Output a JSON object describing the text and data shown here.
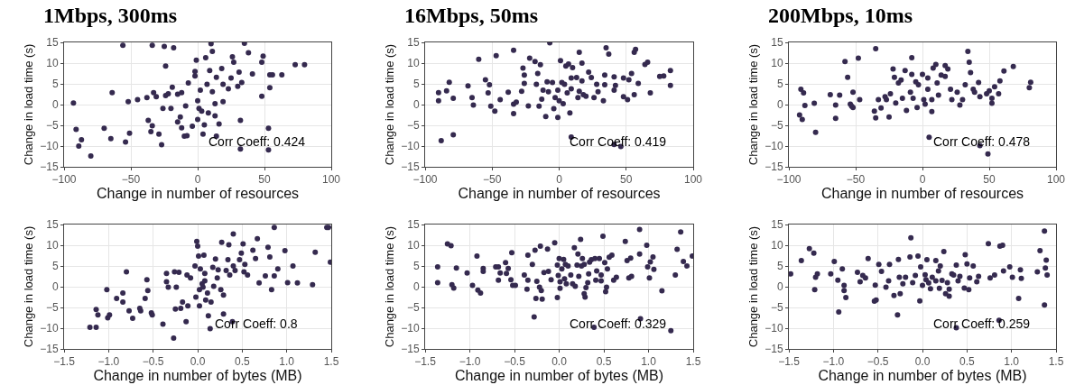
{
  "chart_data": [
    {
      "type": "scatter",
      "title": "1Mbps, 300ms",
      "xlabel": "Change in number of resources",
      "ylabel": "Change in load time (s)",
      "annotations": [
        "Corr Coeff: 0.424"
      ],
      "marker": "circle",
      "grid": true,
      "color": "#352a4f",
      "xlim": [
        -100,
        100
      ],
      "xticks": [
        {
          "value": -100,
          "label": "−100"
        },
        {
          "value": -50,
          "label": "−50"
        },
        0,
        50,
        100
      ],
      "ylim": [
        -15,
        15
      ],
      "yticks": [
        {
          "value": -15,
          "label": "−15"
        },
        {
          "value": -10,
          "label": "−10"
        },
        {
          "value": -5,
          "label": "−5"
        },
        0,
        5,
        10,
        15
      ],
      "x": [
        -93,
        -91,
        -89,
        -87,
        -80,
        -70,
        -65,
        -64,
        -56,
        -54,
        -52,
        -51,
        -45,
        -38,
        -37,
        -35,
        -34,
        -34,
        -33,
        -31,
        -29,
        -27,
        -26,
        -25,
        -24,
        -24,
        -22,
        -20,
        -18,
        -19,
        -15,
        -15,
        -13,
        -12,
        -12,
        -10,
        -8,
        -9,
        -7,
        -4,
        -2,
        -2,
        -1,
        0,
        0,
        1,
        2,
        3,
        4,
        5,
        6,
        7,
        8,
        9,
        10,
        11,
        11,
        13,
        13,
        14,
        14,
        16,
        18,
        19,
        19,
        23,
        25,
        26,
        27,
        30,
        31,
        32,
        32,
        33,
        35,
        38,
        41,
        48,
        48,
        49,
        53,
        53,
        54,
        54,
        56,
        63,
        73,
        80
      ],
      "values": [
        0.4,
        -6,
        -10,
        -8.5,
        -12.4,
        -5.7,
        -8.2,
        2.9,
        14.3,
        -9,
        0.7,
        -6.9,
        1.2,
        1.7,
        -3.8,
        -6.5,
        -5.1,
        14.3,
        2.9,
        1.9,
        -7.1,
        -9.7,
        -0.9,
        14,
        9.3,
        2.2,
        2.6,
        -0.9,
        13.7,
        4.2,
        -4.2,
        2.5,
        -3,
        2.9,
        -5.6,
        -7.6,
        -7.5,
        -0.3,
        5.2,
        -5.2,
        8,
        6.9,
        10.7,
        -3.6,
        0.9,
        -0.9,
        3.5,
        -1.6,
        -7.1,
        -4.9,
        11.3,
        4.9,
        -2,
        8.2,
        14.7,
        12.8,
        3.1,
        0.2,
        -2.7,
        6.6,
        -7.6,
        -4.7,
        8.7,
        4.9,
        0.7,
        3.8,
        6.4,
        11.5,
        10.2,
        4.4,
        7.8,
        -10.7,
        -3.8,
        5.3,
        14.8,
        12.5,
        7.4,
        2,
        10.2,
        11.7,
        -5.7,
        -10.9,
        4.1,
        7.2,
        7.2,
        7.2,
        9.6,
        9.6
      ]
    },
    {
      "type": "scatter",
      "title": "16Mbps, 50ms",
      "xlabel": "Change in number of resources",
      "ylabel": "Change in load time (s)",
      "annotations": [
        "Corr Coeff: 0.419"
      ],
      "marker": "circle",
      "grid": true,
      "color": "#352a4f",
      "xlim": [
        -100,
        100
      ],
      "xticks": [
        {
          "value": -100,
          "label": "−100"
        },
        {
          "value": -50,
          "label": "−50"
        },
        0,
        50,
        100
      ],
      "ylim": [
        -15,
        15
      ],
      "yticks": [
        {
          "value": -15,
          "label": "−15"
        },
        {
          "value": -10,
          "label": "−10"
        },
        {
          "value": -5,
          "label": "−5"
        },
        0,
        5,
        10,
        15
      ],
      "x": [
        -90,
        -90,
        -88,
        -84,
        -82,
        -79,
        -79,
        -68,
        -65,
        -64,
        -60,
        -55,
        -53,
        -52,
        -51,
        -48,
        -47,
        -44,
        -38,
        -34,
        -34,
        -34,
        -32,
        -28,
        -27,
        -26,
        -26,
        -23,
        -22,
        -18,
        -17,
        -16,
        -15,
        -14,
        -13,
        -12,
        -10,
        -9,
        -8,
        -7,
        -5,
        -4,
        -3,
        -1,
        -1,
        0,
        1,
        2,
        3,
        4,
        5,
        6,
        7,
        8,
        9,
        9,
        9,
        10,
        13,
        14,
        15,
        15,
        17,
        17,
        18,
        20,
        22,
        24,
        26,
        28,
        29,
        33,
        34,
        34,
        35,
        37,
        41,
        41,
        42,
        41,
        46,
        48,
        48,
        51,
        52,
        54,
        56,
        56,
        57,
        59,
        64,
        66,
        68,
        75,
        78,
        83,
        83
      ],
      "values": [
        2.9,
        0.9,
        -8.7,
        3.3,
        5.4,
        1.5,
        -7.3,
        4.5,
        1.7,
        -0.1,
        10.9,
        6,
        2.8,
        4.8,
        -0.4,
        -1.6,
        11.8,
        1.2,
        3,
        13.1,
        -2.2,
        0.1,
        0.6,
        3.2,
        8.8,
        5.1,
        7.1,
        -0.3,
        11.2,
        10.4,
        4.9,
        7.5,
        -0.4,
        9.6,
        1.3,
        3.5,
        -2.9,
        5.5,
        3.1,
        14.9,
        5.3,
        -1,
        1.7,
        -3.1,
        3.5,
        0.9,
        10.6,
        5.3,
        0.2,
        4.9,
        9.3,
        2.8,
        9.8,
        -2,
        -7.8,
        6.4,
        3.8,
        8.9,
        6.5,
        1.7,
        3.2,
        12.6,
        10,
        5.7,
        2.4,
        2,
        7.8,
        6.5,
        1.7,
        4.9,
        3.1,
        0.9,
        7.1,
        4.8,
        13.7,
        12.2,
        6.7,
        3.5,
        4.6,
        -9.6,
        -10.1,
        6.4,
        1.9,
        1.2,
        6,
        7.5,
        2.4,
        12.6,
        13.3,
        5.1,
        9.7,
        10.2,
        2.8,
        6.8,
        6.9,
        8.2,
        4.6
      ]
    },
    {
      "type": "scatter",
      "title": "200Mbps, 10ms",
      "xlabel": "Change in number of resources",
      "ylabel": "Change in load time (s)",
      "annotations": [
        "Corr Coeff: 0.478"
      ],
      "marker": "circle",
      "grid": true,
      "color": "#352a4f",
      "xlim": [
        -100,
        100
      ],
      "xticks": [
        {
          "value": -100,
          "label": "−100"
        },
        {
          "value": -50,
          "label": "−50"
        },
        0,
        50,
        100
      ],
      "ylim": [
        -15,
        15
      ],
      "yticks": [
        {
          "value": -15,
          "label": "−15"
        },
        {
          "value": -10,
          "label": "−10"
        },
        {
          "value": -5,
          "label": "−5"
        },
        0,
        5,
        10,
        15
      ],
      "x": [
        -92,
        -91,
        -90,
        -89,
        -88,
        -81,
        -80,
        -69,
        -65,
        -65,
        -62,
        -58,
        -56,
        -54,
        -53,
        -52,
        -52,
        -48,
        -47,
        -36,
        -35,
        -35,
        -33,
        -31,
        -28,
        -27,
        -25,
        -24,
        -22,
        -21,
        -20,
        -18,
        -16,
        -15,
        -13,
        -12,
        -9,
        -8,
        -8,
        -7,
        -5,
        -4,
        -3,
        0,
        1,
        2,
        4,
        4,
        5,
        7,
        7,
        8,
        10,
        11,
        12,
        14,
        17,
        17,
        19,
        21,
        22,
        26,
        28,
        30,
        32,
        34,
        35,
        36,
        38,
        39,
        42,
        43,
        43,
        48,
        49,
        50,
        52,
        52,
        54,
        57,
        58,
        61,
        68,
        80,
        81
      ],
      "values": [
        -2.5,
        3.7,
        -3.6,
        2.8,
        -0.2,
        0.3,
        -6.7,
        2.4,
        -0.1,
        -3.3,
        2.3,
        10.4,
        6.6,
        0.1,
        -0.4,
        3,
        -0.7,
        11.2,
        1.2,
        -1.6,
        13.5,
        -3.2,
        1.2,
        -0.8,
        1.9,
        1.2,
        -3,
        2.6,
        8.6,
        6.6,
        0.4,
        5.2,
        5.9,
        1.5,
        8.2,
        -1.4,
        3,
        11.3,
        7.3,
        1.5,
        5.5,
        -0.7,
        4.8,
        7.3,
        1.2,
        0.1,
        3.7,
        6.4,
        -7.9,
        1.2,
        -1.7,
        8.8,
        9.7,
        5.2,
        2.3,
        7.1,
        6.8,
        9.4,
        8.6,
        3.7,
        1.2,
        3,
        -0.1,
        1.2,
        4.8,
        12.8,
        10.2,
        7.7,
        3.7,
        3,
        5.3,
        1.9,
        -9.9,
        2.6,
        -11.9,
        3.3,
        1.5,
        0.3,
        4.3,
        2.6,
        5.7,
        8.1,
        9.2,
        4.1,
        5.4
      ]
    },
    {
      "type": "scatter",
      "xlabel": "Change in number of bytes (MB)",
      "ylabel": "Change in load time (s)",
      "annotations": [
        "Corr Coeff: 0.8"
      ],
      "marker": "circle",
      "grid": true,
      "color": "#352a4f",
      "xlim": [
        -1.5,
        1.5
      ],
      "xticks": [
        {
          "value": -1.5,
          "label": "−1.5"
        },
        {
          "value": -1,
          "label": "−1.0"
        },
        {
          "value": -0.5,
          "label": "−0.5"
        },
        {
          "value": 0,
          "label": "0.0"
        },
        0.5,
        {
          "value": 1,
          "label": "1.0"
        },
        1.5
      ],
      "ylim": [
        -15,
        15
      ],
      "yticks": [
        {
          "value": -15,
          "label": "−15"
        },
        {
          "value": -10,
          "label": "−10"
        },
        {
          "value": -5,
          "label": "−5"
        },
        0,
        5,
        10,
        15
      ],
      "x": [
        -1.21,
        -1.14,
        -1.14,
        -1.12,
        -1.02,
        -1.01,
        -0.99,
        -0.91,
        -0.84,
        -0.84,
        -0.8,
        -0.77,
        -0.73,
        -0.65,
        -0.64,
        -0.59,
        -0.57,
        -0.56,
        -0.52,
        -0.51,
        -0.39,
        -0.35,
        -0.35,
        -0.33,
        -0.27,
        -0.26,
        -0.25,
        -0.24,
        -0.21,
        -0.19,
        -0.17,
        -0.13,
        -0.12,
        -0.11,
        -0.08,
        -0.03,
        -0.02,
        -0.01,
        0,
        0.01,
        0.02,
        0.02,
        0.03,
        0.05,
        0.06,
        0.07,
        0.08,
        0.08,
        0.09,
        0.11,
        0.12,
        0.14,
        0.15,
        0.17,
        0.18,
        0.2,
        0.22,
        0.23,
        0.26,
        0.27,
        0.29,
        0.29,
        0.32,
        0.34,
        0.35,
        0.36,
        0.39,
        0.4,
        0.4,
        0.42,
        0.47,
        0.49,
        0.51,
        0.52,
        0.53,
        0.56,
        0.62,
        0.65,
        0.67,
        0.69,
        0.76,
        0.79,
        0.81,
        0.83,
        0.86,
        0.86,
        0.9,
        0.98,
        1.01,
        1.07,
        1.12,
        1.29,
        1.32,
        1.45,
        1.47,
        1.49
      ],
      "values": [
        -9.8,
        -5.5,
        -9.8,
        -6.8,
        -0.7,
        -7.5,
        -6.8,
        -2.8,
        -3.7,
        -1.5,
        3.6,
        -5.8,
        -7.6,
        -5.2,
        -5.8,
        -2.8,
        1.7,
        -0.9,
        -6.3,
        -6.8,
        -9,
        3.2,
        1.2,
        -0.1,
        -12.4,
        3.6,
        -5.4,
        -0.1,
        3.5,
        -5.2,
        -3.7,
        -8.4,
        2.8,
        -4.6,
        2.1,
        5,
        -2.5,
        10.9,
        9.8,
        7.4,
        -4.6,
        -0.7,
        4.3,
        0.7,
        -0.1,
        7.6,
        3.2,
        1.4,
        -3.2,
        -1.5,
        -7,
        -10.1,
        -3.7,
        4.7,
        0.1,
        6.7,
        2.1,
        4.1,
        -0.7,
        10.7,
        -2,
        -6.6,
        3.9,
        6.5,
        10.1,
        2.8,
        -8.4,
        12.7,
        5,
        3.9,
        6.5,
        8.1,
        10.3,
        3.6,
        5.4,
        2.8,
        8.8,
        6.8,
        11.6,
        0.9,
        2.6,
        9.5,
        7.2,
        -0.7,
        14.3,
        2.6,
        4.3,
        8.7,
        1,
        5,
        0.9,
        0.5,
        8.3,
        14.3,
        14.3,
        5.9
      ]
    },
    {
      "type": "scatter",
      "xlabel": "Change in number of bytes (MB)",
      "ylabel": "Change in load time (s)",
      "annotations": [
        "Corr Coeff: 0.329"
      ],
      "marker": "circle",
      "grid": true,
      "color": "#352a4f",
      "xlim": [
        -1.5,
        1.5
      ],
      "xticks": [
        {
          "value": -1.5,
          "label": "−1.5"
        },
        {
          "value": -1,
          "label": "−1.0"
        },
        {
          "value": -0.5,
          "label": "−0.5"
        },
        {
          "value": 0,
          "label": "0.0"
        },
        0.5,
        {
          "value": 1,
          "label": "1.0"
        },
        1.5
      ],
      "ylim": [
        -15,
        15
      ],
      "yticks": [
        {
          "value": -15,
          "label": "−15"
        },
        {
          "value": -10,
          "label": "−10"
        },
        {
          "value": -5,
          "label": "−5"
        },
        0,
        5,
        10,
        15
      ],
      "x": [
        -1.36,
        -1.36,
        -1.25,
        -1.21,
        -1.2,
        -1.18,
        -1.15,
        -1.03,
        -0.97,
        -0.92,
        -0.91,
        -0.88,
        -0.85,
        -0.85,
        -0.71,
        -0.68,
        -0.68,
        -0.66,
        -0.6,
        -0.59,
        -0.57,
        -0.54,
        -0.53,
        -0.52,
        -0.49,
        -0.39,
        -0.36,
        -0.35,
        -0.35,
        -0.3,
        -0.28,
        -0.27,
        -0.26,
        -0.25,
        -0.22,
        -0.21,
        -0.2,
        -0.19,
        -0.17,
        -0.13,
        -0.12,
        -0.09,
        -0.05,
        -0.02,
        -0.02,
        -0.01,
        0,
        0.01,
        0.01,
        0.03,
        0.05,
        0.06,
        0.07,
        0.08,
        0.1,
        0.13,
        0.15,
        0.17,
        0.18,
        0.2,
        0.21,
        0.22,
        0.24,
        0.25,
        0.26,
        0.28,
        0.28,
        0.29,
        0.3,
        0.32,
        0.33,
        0.34,
        0.36,
        0.39,
        0.4,
        0.41,
        0.42,
        0.45,
        0.47,
        0.47,
        0.49,
        0.51,
        0.52,
        0.53,
        0.54,
        0.56,
        0.59,
        0.61,
        0.64,
        0.74,
        0.76,
        0.78,
        0.8,
        0.81,
        0.9,
        0.9,
        0.91,
        0.98,
        0.99,
        1.01,
        1.02,
        1.05,
        1.06,
        1.15,
        1.25,
        1.3,
        1.32,
        1.36,
        1.39,
        1.43,
        1.49
      ],
      "values": [
        4.8,
        1,
        10.3,
        9.9,
        0.5,
        -0.3,
        4.5,
        3.3,
        0.3,
        7.4,
        -0.8,
        -1.5,
        4.4,
        3.7,
        4.8,
        4.8,
        1.6,
        3.3,
        5.8,
        3.2,
        4.4,
        1.7,
        8.2,
        0.3,
        0.3,
        2.8,
        -0.6,
        1.6,
        7.6,
        5.4,
        -7.3,
        8.8,
        -2.8,
        1.3,
        -0.1,
        9.8,
        -0.9,
        -3,
        3.4,
        9.1,
        3.7,
        1.7,
        10.6,
        5.2,
        -2.6,
        2.7,
        6.8,
        1.2,
        -0.4,
        4.3,
        6.6,
        1.9,
        5.4,
        0.7,
        5,
        2.8,
        0.7,
        9.4,
        0.1,
        5.2,
        7.9,
        2.5,
        11.4,
        5,
        6.8,
        5.4,
        -1.7,
        -2.5,
        -0.2,
        1,
        3.1,
        5.9,
        6.5,
        -9.8,
        6.8,
        1.6,
        3.8,
        6.8,
        1.4,
        2.8,
        12.2,
        5.8,
        -1.2,
        -0.1,
        4.3,
        7.1,
        7.6,
        1.6,
        2.3,
        10.9,
        6.3,
        2.1,
        6.9,
        2.5,
        13.8,
        7.9,
        -7.7,
        10,
        4.8,
        2.1,
        6,
        7.2,
        4.2,
        -1,
        -10.6,
        2.8,
        9,
        13.2,
        6.1,
        5,
        7.4
      ]
    },
    {
      "type": "scatter",
      "xlabel": "Change in number of bytes (MB)",
      "ylabel": "Change in load time (s)",
      "annotations": [
        "Corr Coeff: 0.259"
      ],
      "marker": "circle",
      "grid": true,
      "color": "#352a4f",
      "xlim": [
        -1.5,
        1.5
      ],
      "xticks": [
        {
          "value": -1.5,
          "label": "−1.5"
        },
        {
          "value": -1,
          "label": "−1.0"
        },
        {
          "value": -0.5,
          "label": "−0.5"
        },
        {
          "value": 0,
          "label": "0.0"
        },
        0.5,
        {
          "value": 1,
          "label": "1.0"
        },
        1.5
      ],
      "ylim": [
        -15,
        15
      ],
      "yticks": [
        {
          "value": -15,
          "label": "−15"
        },
        {
          "value": -10,
          "label": "−10"
        },
        {
          "value": -5,
          "label": "−5"
        },
        0,
        5,
        10,
        15
      ],
      "x": [
        -1.48,
        -1.36,
        -1.27,
        -1.22,
        -1.21,
        -1.2,
        -1.18,
        -1.03,
        -0.99,
        -0.95,
        -0.94,
        -0.9,
        -0.88,
        -0.88,
        -0.86,
        -0.73,
        -0.7,
        -0.67,
        -0.64,
        -0.61,
        -0.54,
        -0.53,
        -0.52,
        -0.49,
        -0.46,
        -0.41,
        -0.38,
        -0.37,
        -0.32,
        -0.28,
        -0.27,
        -0.26,
        -0.25,
        -0.22,
        -0.19,
        -0.14,
        -0.13,
        -0.11,
        -0.08,
        -0.05,
        -0.03,
        -0.02,
        0,
        0.03,
        0.04,
        0.05,
        0.07,
        0.09,
        0.11,
        0.15,
        0.15,
        0.18,
        0.19,
        0.2,
        0.22,
        0.24,
        0.26,
        0.28,
        0.3,
        0.3,
        0.33,
        0.35,
        0.38,
        0.38,
        0.4,
        0.42,
        0.47,
        0.48,
        0.5,
        0.52,
        0.53,
        0.57,
        0.61,
        0.63,
        0.74,
        0.76,
        0.81,
        0.86,
        0.87,
        0.9,
        0.91,
        0.98,
        1.01,
        1.1,
        1.08,
        1.11,
        1.29,
        1.32,
        1.37,
        1.37,
        1.38,
        1.39,
        1.4
      ],
      "values": [
        3.1,
        6.3,
        9.2,
        8.1,
        -0.7,
        2.3,
        3.1,
        3.1,
        6.1,
        1.6,
        -6.1,
        4.3,
        0.3,
        -0.9,
        -2.6,
        3.5,
        1.2,
        2.7,
        2.1,
        6.8,
        -3.5,
        0.4,
        -3.2,
        5.4,
        3.7,
        -0.1,
        1.4,
        5.4,
        -2.1,
        -6.8,
        6.6,
        2.3,
        -1.7,
        0.7,
        2.3,
        7.2,
        11.8,
        1,
        2.7,
        7.4,
        -3.4,
        4.8,
        0.3,
        2.9,
        1.7,
        6.5,
        0.9,
        -0.5,
        2.3,
        1.4,
        6.3,
        3.8,
        -0.4,
        5,
        1.5,
        8.5,
        -1.7,
        1,
        -2.3,
        -0.6,
        3.1,
        2.8,
        5.2,
        -9.9,
        1.4,
        2.5,
        -0.3,
        7.7,
        5.5,
        -0.7,
        2.1,
        5,
        1.2,
        2.5,
        10.4,
        2.1,
        2.8,
        -8.1,
        9.8,
        10,
        3.8,
        4.8,
        2.3,
        4.1,
        -2.8,
        2,
        3.6,
        8.7,
        13.4,
        -4.4,
        4.5,
        6.4,
        2.8
      ]
    }
  ]
}
